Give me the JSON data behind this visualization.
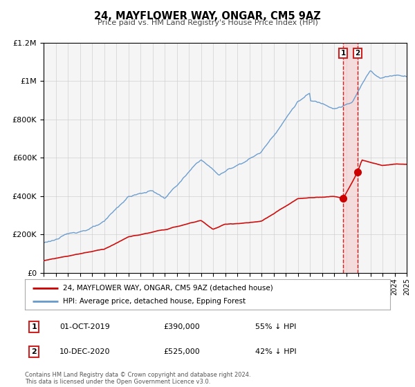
{
  "title": "24, MAYFLOWER WAY, ONGAR, CM5 9AZ",
  "subtitle": "Price paid vs. HM Land Registry's House Price Index (HPI)",
  "legend_label_red": "24, MAYFLOWER WAY, ONGAR, CM5 9AZ (detached house)",
  "legend_label_blue": "HPI: Average price, detached house, Epping Forest",
  "sale1_date": "01-OCT-2019",
  "sale1_price": 390000,
  "sale1_hpi": "55% ↓ HPI",
  "sale2_date": "10-DEC-2020",
  "sale2_price": 525000,
  "sale2_hpi": "42% ↓ HPI",
  "sale1_year": 2019.75,
  "sale2_year": 2020.94,
  "xmin": 1995,
  "xmax": 2025,
  "ymin": 0,
  "ymax": 1200000,
  "red_color": "#cc0000",
  "blue_color": "#6699cc",
  "background_color": "#f5f5f5",
  "grid_color": "#cccccc",
  "vline_color": "#cc2222",
  "vline_shade_color": "#f5cccc",
  "footer_text": "Contains HM Land Registry data © Crown copyright and database right 2024.\nThis data is licensed under the Open Government Licence v3.0."
}
